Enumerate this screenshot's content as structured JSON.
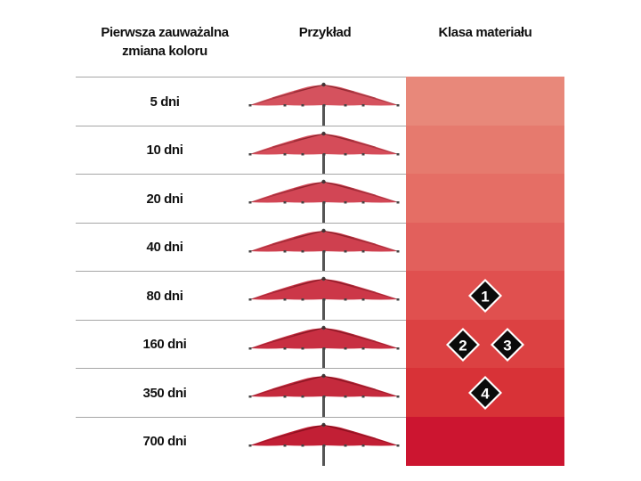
{
  "headers": {
    "first_change": [
      "Pierwsza zauważalna",
      "zmiana koloru"
    ],
    "example": "Przykład",
    "material_class": "Klasa materiału"
  },
  "rows": [
    {
      "label": "5 dni",
      "canopy_color": "#d5525e",
      "swatch_color": "#e8887a",
      "classes": []
    },
    {
      "label": "10 dni",
      "canopy_color": "#d54c59",
      "swatch_color": "#e67a6e",
      "classes": []
    },
    {
      "label": "20 dni",
      "canopy_color": "#d24655",
      "swatch_color": "#e56e65",
      "classes": []
    },
    {
      "label": "40 dni",
      "canopy_color": "#cf404f",
      "swatch_color": "#e2605c",
      "classes": []
    },
    {
      "label": "80 dni",
      "canopy_color": "#cc3748",
      "swatch_color": "#e0504f",
      "classes": [
        "1"
      ]
    },
    {
      "label": "160 dni",
      "canopy_color": "#c82f42",
      "swatch_color": "#dc4142",
      "classes": [
        "2",
        "3"
      ]
    },
    {
      "label": "350 dni",
      "canopy_color": "#c52a3d",
      "swatch_color": "#d83237",
      "classes": [
        "4"
      ]
    },
    {
      "label": "700 dni",
      "canopy_color": "#c21f35",
      "swatch_color": "#cc1530",
      "classes": []
    }
  ],
  "icons": {
    "umbrella": "patio-umbrella-icon",
    "class_badge": "diamond-number-badge-icon"
  }
}
